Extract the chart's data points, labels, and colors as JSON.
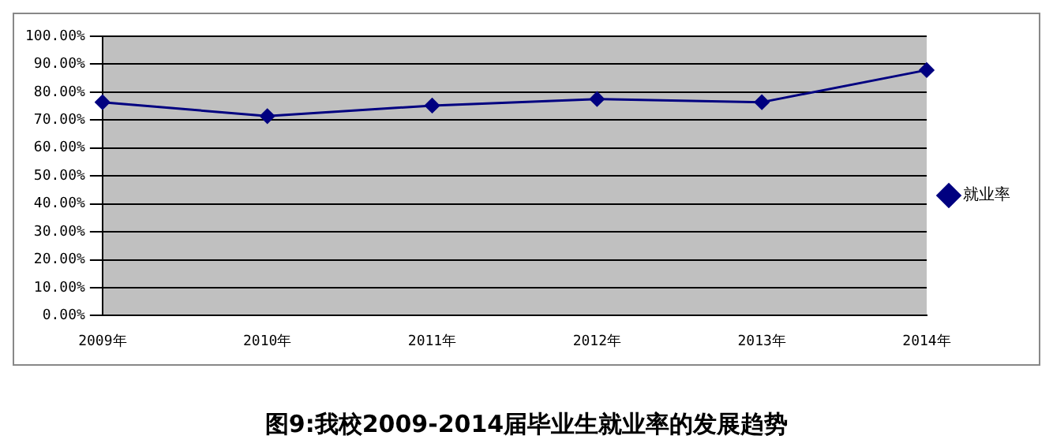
{
  "chart_data": {
    "type": "line",
    "title": "图9:我校2009-2014届毕业生就业率的发展趋势",
    "categories": [
      "2009年",
      "2010年",
      "2011年",
      "2012年",
      "2013年",
      "2014年"
    ],
    "series": [
      {
        "name": "就业率",
        "color": "#000080",
        "values": [
          76.4,
          71.4,
          75.2,
          77.5,
          76.4,
          87.9
        ]
      }
    ],
    "ylim": [
      0,
      100
    ],
    "yticks": [
      {
        "value": 0,
        "label": "0.00%"
      },
      {
        "value": 10,
        "label": "10.00%"
      },
      {
        "value": 20,
        "label": "20.00%"
      },
      {
        "value": 30,
        "label": "30.00%"
      },
      {
        "value": 40,
        "label": "40.00%"
      },
      {
        "value": 50,
        "label": "50.00%"
      },
      {
        "value": 60,
        "label": "60.00%"
      },
      {
        "value": 70,
        "label": "70.00%"
      },
      {
        "value": 80,
        "label": "80.00%"
      },
      {
        "value": 90,
        "label": "90.00%"
      },
      {
        "value": 100,
        "label": "100.00%"
      }
    ],
    "grid": "y",
    "legend": "right",
    "marker": "diamond",
    "line_style": "solid"
  }
}
